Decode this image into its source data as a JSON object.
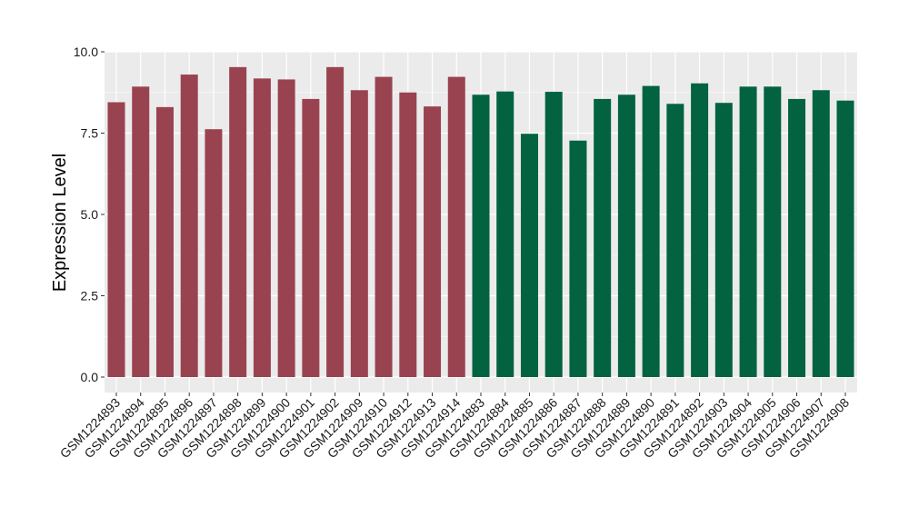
{
  "chart_data": {
    "type": "bar",
    "ylabel": "Expression Level",
    "xlabel": "",
    "title": "",
    "ylim": [
      -0.4,
      10.0
    ],
    "yticks": [
      0.0,
      2.5,
      5.0,
      7.5,
      10.0
    ],
    "ytick_labels": [
      "0.0",
      "2.5",
      "5.0",
      "7.5",
      "10.0"
    ],
    "grid": true,
    "categories": [
      "GSM1224893",
      "GSM1224894",
      "GSM1224895",
      "GSM1224896",
      "GSM1224897",
      "GSM1224898",
      "GSM1224899",
      "GSM1224900",
      "GSM1224901",
      "GSM1224902",
      "GSM1224909",
      "GSM1224910",
      "GSM1224912",
      "GSM1224913",
      "GSM1224914",
      "GSM1224883",
      "GSM1224884",
      "GSM1224885",
      "GSM1224886",
      "GSM1224887",
      "GSM1224888",
      "GSM1224889",
      "GSM1224890",
      "GSM1224891",
      "GSM1224892",
      "GSM1224903",
      "GSM1224904",
      "GSM1224905",
      "GSM1224906",
      "GSM1224907",
      "GSM1224908"
    ],
    "values": [
      8.45,
      8.93,
      8.3,
      9.3,
      7.62,
      9.53,
      9.18,
      9.15,
      8.55,
      9.53,
      8.82,
      9.23,
      8.75,
      8.32,
      9.23,
      8.68,
      8.78,
      7.48,
      8.77,
      7.27,
      8.55,
      8.68,
      8.95,
      8.4,
      9.03,
      8.43,
      8.93,
      8.93,
      8.55,
      8.82,
      8.5
    ],
    "group_counts": [
      15,
      16
    ],
    "colors": {
      "group_1": "#9a4350",
      "group_2": "#036341",
      "panel_background": "#ebebeb",
      "grid_line": "#ffffff"
    }
  }
}
